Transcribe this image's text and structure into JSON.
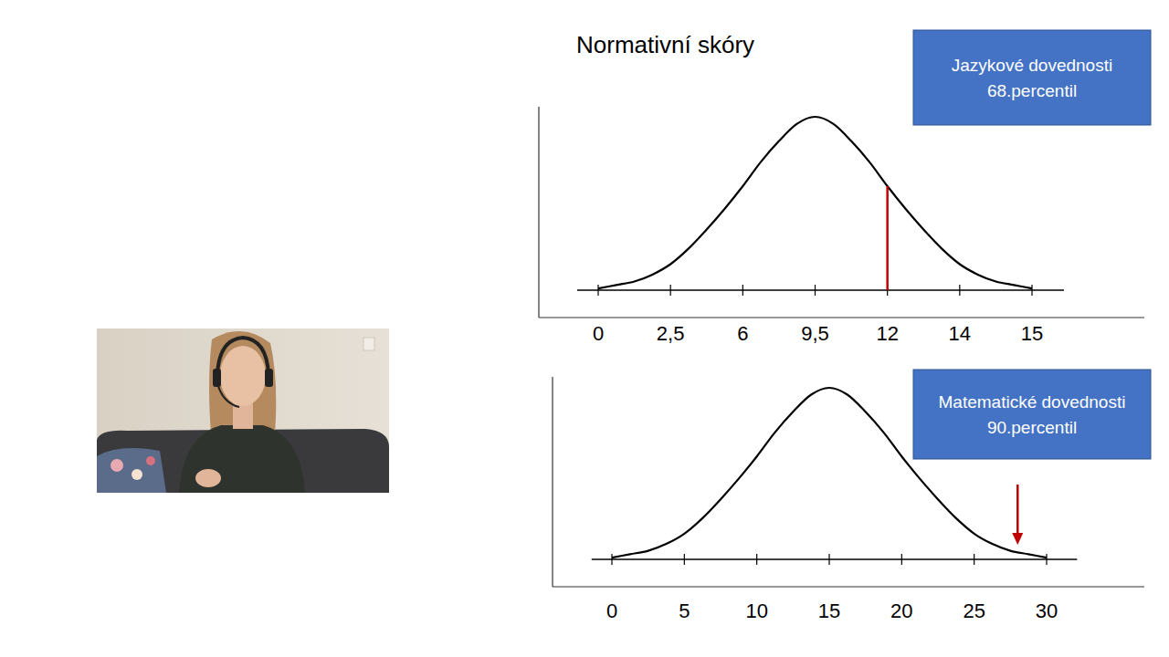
{
  "title": "Normativní skóry",
  "chart_data": [
    {
      "type": "line",
      "categories": [
        "0",
        null,
        null,
        null,
        "2,5",
        null,
        null,
        null,
        "6",
        null,
        null,
        null,
        "9,5",
        null,
        null,
        null,
        "12",
        null,
        null,
        null,
        "14",
        null,
        null,
        null,
        "15"
      ],
      "values": [
        1,
        3,
        5,
        9,
        15,
        24,
        35,
        47,
        60,
        74,
        86,
        96,
        100,
        96,
        86,
        74,
        60,
        47,
        35,
        24,
        15,
        9,
        5,
        3,
        1
      ],
      "ylim": [
        0,
        100
      ],
      "tick_labels": "x",
      "grid": false,
      "color": "#000000",
      "line_at": "12",
      "box": [
        "Jazykové dovednosti",
        "68.percentil"
      ]
    },
    {
      "type": "line",
      "x": [
        0,
        1.25,
        2.5,
        3.75,
        5,
        6.25,
        7.5,
        8.75,
        10,
        11.25,
        12.5,
        13.75,
        15,
        16.25,
        17.5,
        18.75,
        20,
        21.25,
        22.5,
        23.75,
        25,
        26.25,
        27.5,
        28.75,
        30
      ],
      "values": [
        1,
        3,
        5,
        9,
        15,
        24,
        35,
        47,
        60,
        74,
        86,
        96,
        100,
        96,
        86,
        74,
        60,
        47,
        35,
        24,
        15,
        9,
        5,
        3,
        1
      ],
      "xlim": [
        -1.4,
        32.1
      ],
      "xticks": [
        0,
        5,
        10,
        15,
        20,
        25,
        30
      ],
      "ylim": [
        0,
        100
      ],
      "tick_labels": "x",
      "grid": false,
      "color": "#000000",
      "arrow_x": 28,
      "box": [
        "Matematické dovednosti",
        "90.percentil"
      ]
    }
  ]
}
